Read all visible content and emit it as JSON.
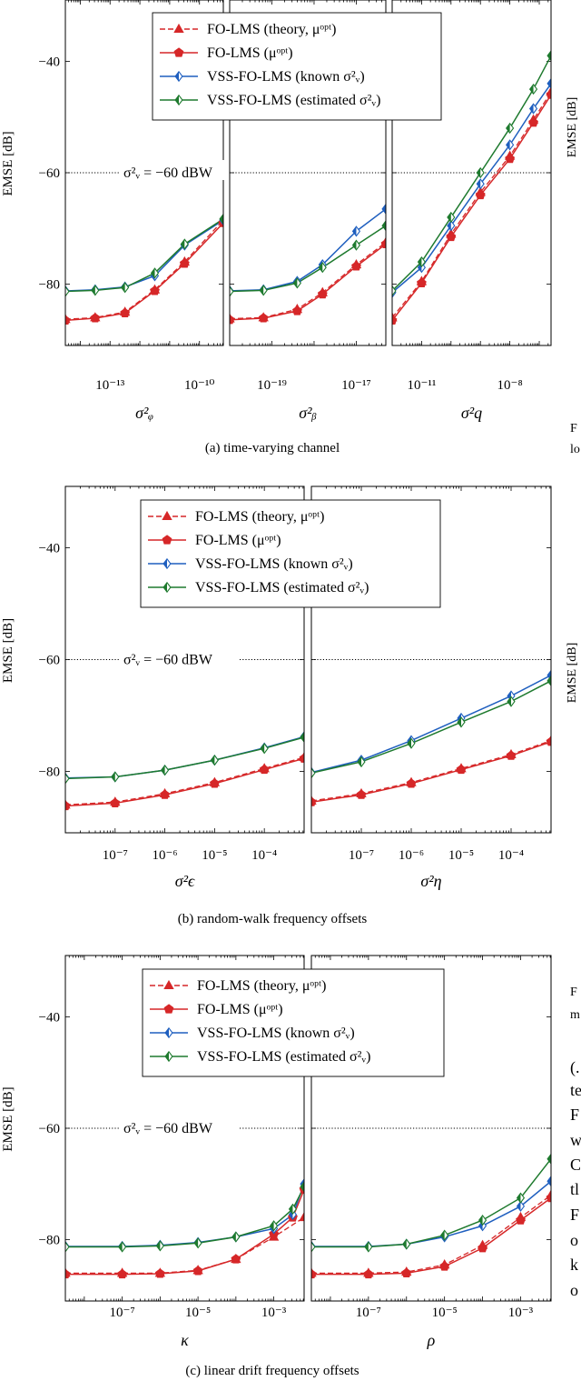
{
  "colors": {
    "fo_theory": "#d62728",
    "fo_lms": "#d62728",
    "vss_known": "#1f5fbf",
    "vss_est": "#1e7a2e"
  },
  "figure_labels": {
    "ylabel": "EMSE [dB]",
    "noise_label": "σ²ᵥ = −60 dBW",
    "captions": [
      "(a) time-varying channel",
      "(b) random-walk frequency offsets",
      "(c) linear drift frequency offsets"
    ]
  },
  "legend": [
    {
      "key": "fo_theory",
      "label": "FO-LMS (theory, μᵒᵖᵗ)",
      "marker": "triangle",
      "dashed": true
    },
    {
      "key": "fo_lms",
      "label": "FO-LMS (μᵒᵖᵗ)",
      "marker": "pentagon",
      "dashed": false
    },
    {
      "key": "vss_known",
      "label": "VSS-FO-LMS (known σ²ᵥ)",
      "marker": "diamond",
      "dashed": false
    },
    {
      "key": "vss_est",
      "label": "VSS-FO-LMS (estimated σ²ᵥ)",
      "marker": "diamond",
      "dashed": false
    }
  ],
  "right_margin_text": {
    "lines": [
      "F",
      "lo",
      "F",
      "m",
      "(.",
      "te",
      "F",
      "w",
      "C",
      "tl",
      "F",
      "o",
      "k",
      "o"
    ],
    "rotated": [
      "EMSE [dB]",
      "EMSE [dB]"
    ]
  },
  "chart_data": [
    {
      "type": "line",
      "group": "a",
      "xlabel": "σ²ᵩ",
      "xscale": "log",
      "xlim": [
        -14.5,
        -9.2
      ],
      "ylim": [
        -91,
        -29
      ],
      "xticks": [
        {
          "v": -13,
          "label": "10⁻¹³"
        },
        {
          "v": -10,
          "label": "10⁻¹⁰"
        }
      ],
      "yticks": [
        -40,
        -60,
        -80
      ],
      "noise_level": -60,
      "series": {
        "fo_theory": [
          [
            -14.5,
            -86.3
          ],
          [
            -13.5,
            -86
          ],
          [
            -12.5,
            -85
          ],
          [
            -11.5,
            -81
          ],
          [
            -10.5,
            -76
          ],
          [
            -9.2,
            -68.5
          ]
        ],
        "fo_lms": [
          [
            -14.5,
            -86.5
          ],
          [
            -13.5,
            -86.1
          ],
          [
            -12.5,
            -85.2
          ],
          [
            -11.5,
            -81.2
          ],
          [
            -10.5,
            -76.3
          ],
          [
            -9.2,
            -69
          ]
        ],
        "vss_known": [
          [
            -14.5,
            -81.2
          ],
          [
            -13.5,
            -81
          ],
          [
            -12.5,
            -80.5
          ],
          [
            -11.5,
            -78.5
          ],
          [
            -10.5,
            -73
          ],
          [
            -9.2,
            -68.5
          ]
        ],
        "vss_est": [
          [
            -14.5,
            -81.3
          ],
          [
            -13.5,
            -81.1
          ],
          [
            -12.5,
            -80.6
          ],
          [
            -11.5,
            -78
          ],
          [
            -10.5,
            -72.8
          ],
          [
            -9.2,
            -68.3
          ]
        ]
      }
    },
    {
      "type": "line",
      "group": "a",
      "xlabel": "σ²ᵦ",
      "xscale": "log",
      "xlim": [
        -20,
        -16.3
      ],
      "ylim": [
        -91,
        -29
      ],
      "xticks": [
        {
          "v": -19,
          "label": "10⁻¹⁹"
        },
        {
          "v": -17,
          "label": "10⁻¹⁷"
        }
      ],
      "yticks": [
        -40,
        -60,
        -80
      ],
      "noise_level": -60,
      "series": {
        "fo_theory": [
          [
            -20,
            -86.2
          ],
          [
            -19.2,
            -86
          ],
          [
            -18.4,
            -84.5
          ],
          [
            -17.8,
            -81.5
          ],
          [
            -17,
            -76.5
          ],
          [
            -16.3,
            -72.5
          ]
        ],
        "fo_lms": [
          [
            -20,
            -86.4
          ],
          [
            -19.2,
            -86.1
          ],
          [
            -18.4,
            -84.8
          ],
          [
            -17.8,
            -81.8
          ],
          [
            -17,
            -76.8
          ],
          [
            -16.3,
            -72.8
          ]
        ],
        "vss_known": [
          [
            -20,
            -81.2
          ],
          [
            -19.2,
            -81
          ],
          [
            -18.4,
            -79.5
          ],
          [
            -17.8,
            -76.5
          ],
          [
            -17,
            -70.5
          ],
          [
            -16.3,
            -66.5
          ]
        ],
        "vss_est": [
          [
            -20,
            -81.3
          ],
          [
            -19.2,
            -81.1
          ],
          [
            -18.4,
            -79.8
          ],
          [
            -17.8,
            -77
          ],
          [
            -17,
            -73
          ],
          [
            -16.3,
            -69.5
          ]
        ]
      }
    },
    {
      "type": "line",
      "group": "a",
      "xlabel": "σ²q",
      "xscale": "log",
      "xlim": [
        -12,
        -6.6
      ],
      "ylim": [
        -91,
        -29
      ],
      "xticks": [
        {
          "v": -11,
          "label": "10⁻¹¹"
        },
        {
          "v": -8,
          "label": "10⁻⁸"
        }
      ],
      "yticks": [
        -40,
        -60,
        -80
      ],
      "noise_level": -60,
      "series": {
        "fo_theory": [
          [
            -12,
            -86
          ],
          [
            -11,
            -79.5
          ],
          [
            -10,
            -71
          ],
          [
            -9,
            -63.5
          ],
          [
            -8,
            -57
          ],
          [
            -7.2,
            -50.5
          ],
          [
            -6.6,
            -45.5
          ]
        ],
        "fo_lms": [
          [
            -12,
            -86.5
          ],
          [
            -11,
            -79.8
          ],
          [
            -10,
            -71.5
          ],
          [
            -9,
            -64
          ],
          [
            -8,
            -57.5
          ],
          [
            -7.2,
            -51
          ],
          [
            -6.6,
            -46
          ]
        ],
        "vss_known": [
          [
            -12,
            -81.5
          ],
          [
            -11,
            -77
          ],
          [
            -10,
            -69.5
          ],
          [
            -9,
            -62
          ],
          [
            -8,
            -55
          ],
          [
            -7.2,
            -48.5
          ],
          [
            -6.6,
            -44
          ]
        ],
        "vss_est": [
          [
            -12,
            -81.2
          ],
          [
            -11,
            -76
          ],
          [
            -10,
            -68
          ],
          [
            -9,
            -60
          ],
          [
            -8,
            -52
          ],
          [
            -7.2,
            -45
          ],
          [
            -6.6,
            -39
          ]
        ]
      }
    },
    {
      "type": "line",
      "group": "b",
      "xlabel": "σ²ϵ",
      "xscale": "log",
      "xlim": [
        -8,
        -3.2
      ],
      "ylim": [
        -91,
        -29
      ],
      "xticks": [
        {
          "v": -7,
          "label": "10⁻⁷"
        },
        {
          "v": -6,
          "label": "10⁻⁶"
        },
        {
          "v": -5,
          "label": "10⁻⁵"
        },
        {
          "v": -4,
          "label": "10⁻⁴"
        }
      ],
      "yticks": [
        -40,
        -60,
        -80
      ],
      "noise_level": -60,
      "series": {
        "fo_theory": [
          [
            -8,
            -86
          ],
          [
            -7,
            -85.5
          ],
          [
            -6,
            -84
          ],
          [
            -5,
            -82
          ],
          [
            -4,
            -79.5
          ],
          [
            -3.2,
            -77.5
          ]
        ],
        "fo_lms": [
          [
            -8,
            -86.2
          ],
          [
            -7,
            -85.7
          ],
          [
            -6,
            -84.2
          ],
          [
            -5,
            -82.2
          ],
          [
            -4,
            -79.7
          ],
          [
            -3.2,
            -77.7
          ]
        ],
        "vss_known": [
          [
            -8,
            -81.2
          ],
          [
            -7,
            -81
          ],
          [
            -6,
            -79.8
          ],
          [
            -5,
            -78
          ],
          [
            -4,
            -75.8
          ],
          [
            -3.2,
            -73.8
          ]
        ],
        "vss_est": [
          [
            -8,
            -81.3
          ],
          [
            -7,
            -81
          ],
          [
            -6,
            -79.8
          ],
          [
            -5,
            -78
          ],
          [
            -4,
            -75.9
          ],
          [
            -3.2,
            -73.9
          ]
        ]
      }
    },
    {
      "type": "line",
      "group": "b",
      "xlabel": "σ²η",
      "xscale": "log",
      "xlim": [
        -8,
        -3.2
      ],
      "ylim": [
        -91,
        -29
      ],
      "xticks": [
        {
          "v": -7,
          "label": "10⁻⁷"
        },
        {
          "v": -6,
          "label": "10⁻⁶"
        },
        {
          "v": -5,
          "label": "10⁻⁵"
        },
        {
          "v": -4,
          "label": "10⁻⁴"
        }
      ],
      "yticks": [
        -40,
        -60,
        -80
      ],
      "noise_level": -60,
      "series": {
        "fo_theory": [
          [
            -8,
            -85.3
          ],
          [
            -7,
            -84
          ],
          [
            -6,
            -82
          ],
          [
            -5,
            -79.5
          ],
          [
            -4,
            -77
          ],
          [
            -3.2,
            -74.5
          ]
        ],
        "fo_lms": [
          [
            -8,
            -85.5
          ],
          [
            -7,
            -84.2
          ],
          [
            -6,
            -82.2
          ],
          [
            -5,
            -79.7
          ],
          [
            -4,
            -77.2
          ],
          [
            -3.2,
            -74.7
          ]
        ],
        "vss_known": [
          [
            -8,
            -80.2
          ],
          [
            -7,
            -78
          ],
          [
            -6,
            -74.5
          ],
          [
            -5,
            -70.5
          ],
          [
            -4,
            -66.5
          ],
          [
            -3.2,
            -62.8
          ]
        ],
        "vss_est": [
          [
            -8,
            -80.3
          ],
          [
            -7,
            -78.3
          ],
          [
            -6,
            -75
          ],
          [
            -5,
            -71.2
          ],
          [
            -4,
            -67.5
          ],
          [
            -3.2,
            -63.8
          ]
        ]
      }
    },
    {
      "type": "line",
      "group": "c",
      "xlabel": "κ",
      "xscale": "log",
      "xlim": [
        -8.5,
        -2.2
      ],
      "ylim": [
        -91,
        -29
      ],
      "xticks": [
        {
          "v": -7,
          "label": "10⁻⁷"
        },
        {
          "v": -5,
          "label": "10⁻⁵"
        },
        {
          "v": -3,
          "label": "10⁻³"
        }
      ],
      "yticks": [
        -40,
        -60,
        -80
      ],
      "noise_level": -60,
      "series": {
        "fo_theory": [
          [
            -8.5,
            -86
          ],
          [
            -7,
            -86
          ],
          [
            -6,
            -86
          ],
          [
            -5,
            -85.5
          ],
          [
            -4,
            -83.5
          ],
          [
            -3,
            -79.5
          ],
          [
            -2.2,
            -76
          ]
        ],
        "fo_lms": [
          [
            -8.5,
            -86.2
          ],
          [
            -7,
            -86.2
          ],
          [
            -6,
            -86.1
          ],
          [
            -5,
            -85.6
          ],
          [
            -4,
            -83.5
          ],
          [
            -3,
            -79
          ],
          [
            -2.5,
            -76
          ],
          [
            -2.2,
            -71
          ]
        ],
        "vss_known": [
          [
            -8.5,
            -81.2
          ],
          [
            -7,
            -81.2
          ],
          [
            -6,
            -81
          ],
          [
            -5,
            -80.5
          ],
          [
            -4,
            -79.5
          ],
          [
            -3,
            -78
          ],
          [
            -2.5,
            -75.5
          ],
          [
            -2.2,
            -70
          ]
        ],
        "vss_est": [
          [
            -8.5,
            -81.3
          ],
          [
            -7,
            -81.3
          ],
          [
            -6,
            -81.1
          ],
          [
            -5,
            -80.6
          ],
          [
            -4,
            -79.5
          ],
          [
            -3,
            -77.5
          ],
          [
            -2.5,
            -74.5
          ],
          [
            -2.2,
            -70.5
          ]
        ]
      }
    },
    {
      "type": "line",
      "group": "c",
      "xlabel": "ρ",
      "xscale": "log",
      "xlim": [
        -8.5,
        -2.2
      ],
      "ylim": [
        -91,
        -29
      ],
      "xticks": [
        {
          "v": -7,
          "label": "10⁻⁷"
        },
        {
          "v": -5,
          "label": "10⁻⁵"
        },
        {
          "v": -3,
          "label": "10⁻³"
        }
      ],
      "yticks": [
        -40,
        -60,
        -80
      ],
      "noise_level": -60,
      "series": {
        "fo_theory": [
          [
            -8.5,
            -86
          ],
          [
            -7,
            -86
          ],
          [
            -6,
            -85.8
          ],
          [
            -5,
            -84.5
          ],
          [
            -4,
            -81
          ],
          [
            -3,
            -76
          ],
          [
            -2.2,
            -72
          ]
        ],
        "fo_lms": [
          [
            -8.5,
            -86.2
          ],
          [
            -7,
            -86.2
          ],
          [
            -6,
            -86
          ],
          [
            -5,
            -84.8
          ],
          [
            -4,
            -81.5
          ],
          [
            -3,
            -76.5
          ],
          [
            -2.2,
            -72.5
          ]
        ],
        "vss_known": [
          [
            -8.5,
            -81.2
          ],
          [
            -7,
            -81.2
          ],
          [
            -6,
            -80.8
          ],
          [
            -5,
            -79.5
          ],
          [
            -4,
            -77.5
          ],
          [
            -3,
            -74
          ],
          [
            -2.2,
            -69.5
          ]
        ],
        "vss_est": [
          [
            -8.5,
            -81.3
          ],
          [
            -7,
            -81.3
          ],
          [
            -6,
            -80.8
          ],
          [
            -5,
            -79.2
          ],
          [
            -4,
            -76.5
          ],
          [
            -3,
            -72.5
          ],
          [
            -2.2,
            -65.5
          ]
        ]
      }
    }
  ]
}
